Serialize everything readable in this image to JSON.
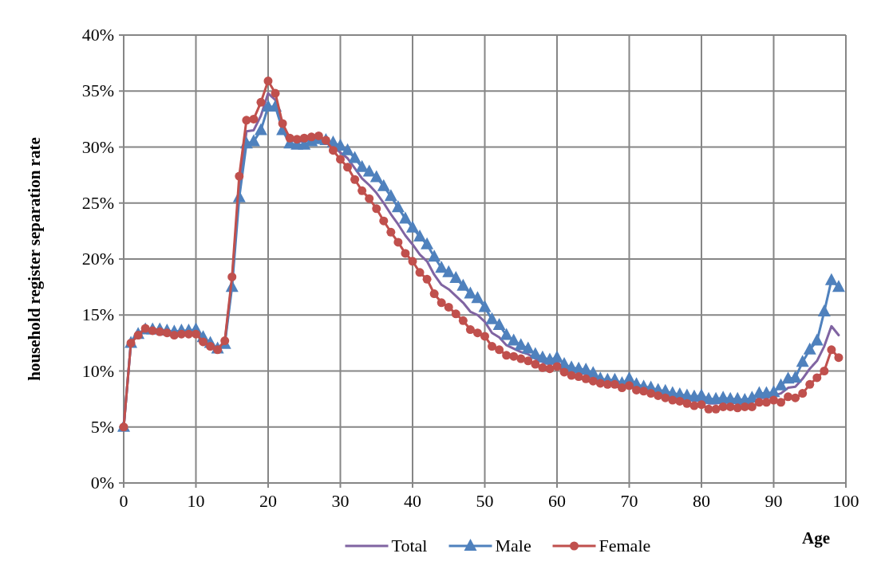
{
  "chart_data": {
    "type": "line",
    "xlabel": "Age",
    "ylabel": "household register separation rate",
    "x": [
      0,
      1,
      2,
      3,
      4,
      5,
      6,
      7,
      8,
      9,
      10,
      11,
      12,
      13,
      14,
      15,
      16,
      17,
      18,
      19,
      20,
      21,
      22,
      23,
      24,
      25,
      26,
      27,
      28,
      29,
      30,
      31,
      32,
      33,
      34,
      35,
      36,
      37,
      38,
      39,
      40,
      41,
      42,
      43,
      44,
      45,
      46,
      47,
      48,
      49,
      50,
      51,
      52,
      53,
      54,
      55,
      56,
      57,
      58,
      59,
      60,
      61,
      62,
      63,
      64,
      65,
      66,
      67,
      68,
      69,
      70,
      71,
      72,
      73,
      74,
      75,
      76,
      77,
      78,
      79,
      80,
      81,
      82,
      83,
      84,
      85,
      86,
      87,
      88,
      89,
      90,
      91,
      92,
      93,
      94,
      95,
      96,
      97,
      98,
      99
    ],
    "xlim": [
      0,
      100
    ],
    "xticks": [
      0,
      10,
      20,
      30,
      40,
      50,
      60,
      70,
      80,
      90,
      100
    ],
    "ylim": [
      0,
      40
    ],
    "yticks": [
      {
        "value": 0,
        "label": "0%"
      },
      {
        "value": 5,
        "label": "5%"
      },
      {
        "value": 10,
        "label": "10%"
      },
      {
        "value": 15,
        "label": "15%"
      },
      {
        "value": 20,
        "label": "20%"
      },
      {
        "value": 25,
        "label": "25%"
      },
      {
        "value": 30,
        "label": "30%"
      },
      {
        "value": 35,
        "label": "35%"
      },
      {
        "value": 40,
        "label": "40%"
      }
    ],
    "grid": true,
    "legend": "bottom",
    "series": [
      {
        "name": "Total",
        "color": "#8064a2",
        "marker": "none",
        "values": [
          5,
          12.5,
          13.3,
          13.8,
          13.7,
          13.6,
          13.5,
          13.4,
          13.5,
          13.5,
          13.5,
          12.8,
          12.4,
          12.0,
          12.6,
          18.0,
          26.4,
          31.4,
          31.5,
          32.8,
          34.8,
          34.2,
          31.8,
          30.6,
          30.5,
          30.5,
          30.7,
          30.9,
          30.6,
          30.1,
          29.5,
          29.0,
          28.1,
          27.2,
          26.6,
          25.9,
          25.0,
          24.0,
          23.1,
          22.1,
          21.3,
          20.4,
          19.8,
          18.6,
          17.7,
          17.3,
          16.7,
          16.1,
          15.3,
          15.0,
          14.4,
          13.4,
          13.0,
          12.3,
          12.0,
          11.7,
          11.5,
          11.1,
          10.8,
          10.6,
          10.8,
          10.3,
          10.0,
          9.9,
          9.7,
          9.5,
          9.1,
          9.0,
          9.0,
          8.7,
          9.0,
          8.6,
          8.4,
          8.3,
          8.1,
          7.9,
          7.7,
          7.6,
          7.5,
          7.3,
          7.4,
          7.1,
          7.1,
          7.2,
          7.2,
          7.1,
          7.1,
          7.2,
          7.6,
          7.6,
          7.8,
          8.0,
          8.5,
          8.6,
          9.3,
          10.2,
          10.9,
          12.2,
          14.0,
          13.2
        ]
      },
      {
        "name": "Male",
        "color": "#4f81bd",
        "marker": "triangle",
        "values": [
          5,
          12.5,
          13.3,
          13.7,
          13.7,
          13.7,
          13.6,
          13.5,
          13.6,
          13.6,
          13.7,
          13.0,
          12.5,
          12.0,
          12.4,
          17.5,
          25.5,
          30.3,
          30.5,
          31.5,
          33.6,
          33.6,
          31.5,
          30.3,
          30.2,
          30.2,
          30.5,
          30.7,
          30.6,
          30.4,
          30.1,
          29.7,
          29.0,
          28.2,
          27.8,
          27.3,
          26.5,
          25.6,
          24.6,
          23.6,
          22.8,
          22.0,
          21.3,
          20.2,
          19.2,
          18.8,
          18.3,
          17.6,
          16.9,
          16.5,
          15.7,
          14.6,
          14.1,
          13.2,
          12.7,
          12.3,
          12.0,
          11.5,
          11.2,
          11.0,
          11.2,
          10.6,
          10.3,
          10.2,
          10.1,
          9.8,
          9.3,
          9.2,
          9.2,
          8.9,
          9.3,
          8.8,
          8.6,
          8.5,
          8.3,
          8.2,
          8.0,
          7.9,
          7.8,
          7.7,
          7.8,
          7.5,
          7.5,
          7.6,
          7.5,
          7.5,
          7.4,
          7.6,
          8.0,
          8.0,
          8.1,
          8.7,
          9.3,
          9.4,
          10.8,
          11.9,
          12.7,
          15.3,
          18.1,
          17.5
        ]
      },
      {
        "name": "Female",
        "color": "#c0504d",
        "marker": "circle",
        "values": [
          5,
          12.5,
          13.2,
          13.8,
          13.6,
          13.5,
          13.4,
          13.2,
          13.3,
          13.3,
          13.3,
          12.6,
          12.2,
          11.9,
          12.7,
          18.4,
          27.4,
          32.4,
          32.5,
          34.0,
          35.9,
          34.8,
          32.1,
          30.8,
          30.7,
          30.8,
          30.9,
          31.0,
          30.6,
          29.7,
          28.9,
          28.2,
          27.1,
          26.1,
          25.4,
          24.5,
          23.4,
          22.4,
          21.5,
          20.5,
          19.8,
          18.8,
          18.2,
          16.9,
          16.1,
          15.7,
          15.1,
          14.5,
          13.7,
          13.4,
          13.1,
          12.2,
          11.9,
          11.4,
          11.3,
          11.1,
          10.9,
          10.6,
          10.3,
          10.2,
          10.4,
          9.9,
          9.6,
          9.5,
          9.3,
          9.1,
          8.9,
          8.8,
          8.8,
          8.5,
          8.7,
          8.3,
          8.2,
          8.0,
          7.8,
          7.6,
          7.4,
          7.3,
          7.1,
          6.9,
          7.0,
          6.6,
          6.6,
          6.8,
          6.8,
          6.7,
          6.8,
          6.8,
          7.2,
          7.2,
          7.4,
          7.2,
          7.7,
          7.6,
          8.0,
          8.8,
          9.4,
          10.0,
          11.9,
          11.2
        ]
      }
    ]
  }
}
